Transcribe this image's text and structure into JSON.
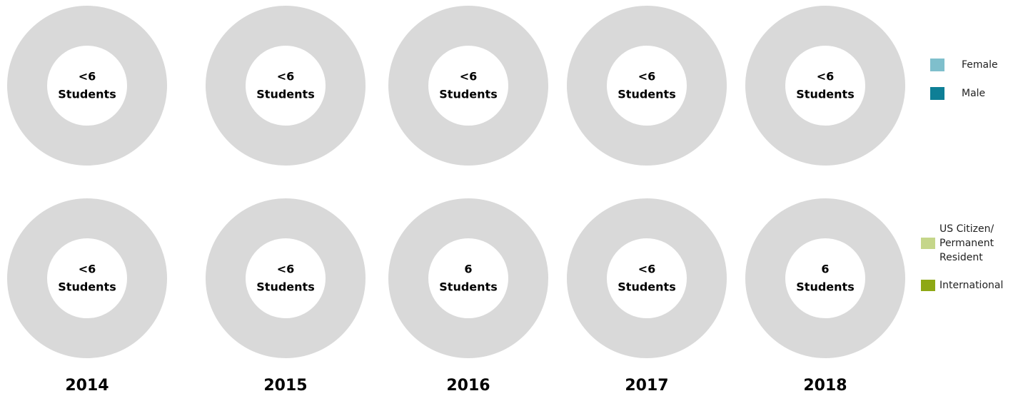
{
  "years": [
    "2014",
    "2015",
    "2016",
    "2017",
    "2018"
  ],
  "gender": {
    "centers": [
      {
        "count": "<6",
        "unit": "Students"
      },
      {
        "count": "<6",
        "unit": "Students"
      },
      {
        "count": "<6",
        "unit": "Students"
      },
      {
        "count": "<6",
        "unit": "Students"
      },
      {
        "count": "<6",
        "unit": "Students"
      }
    ],
    "legend": [
      {
        "lines": [
          "Female"
        ],
        "color": "#7fbfcc"
      },
      {
        "lines": [
          "Male"
        ],
        "color": "#0e7f96"
      }
    ]
  },
  "citizenship": {
    "centers": [
      {
        "count": "<6",
        "unit": "Students"
      },
      {
        "count": "<6",
        "unit": "Students"
      },
      {
        "count": "6",
        "unit": "Students"
      },
      {
        "count": "<6",
        "unit": "Students"
      },
      {
        "count": "6",
        "unit": "Students"
      }
    ],
    "legend": [
      {
        "lines": [
          "US Citizen/",
          "Permanent",
          "Resident"
        ],
        "color": "#c5d68a"
      },
      {
        "lines": [
          "International"
        ],
        "color": "#8ea815"
      }
    ]
  }
}
